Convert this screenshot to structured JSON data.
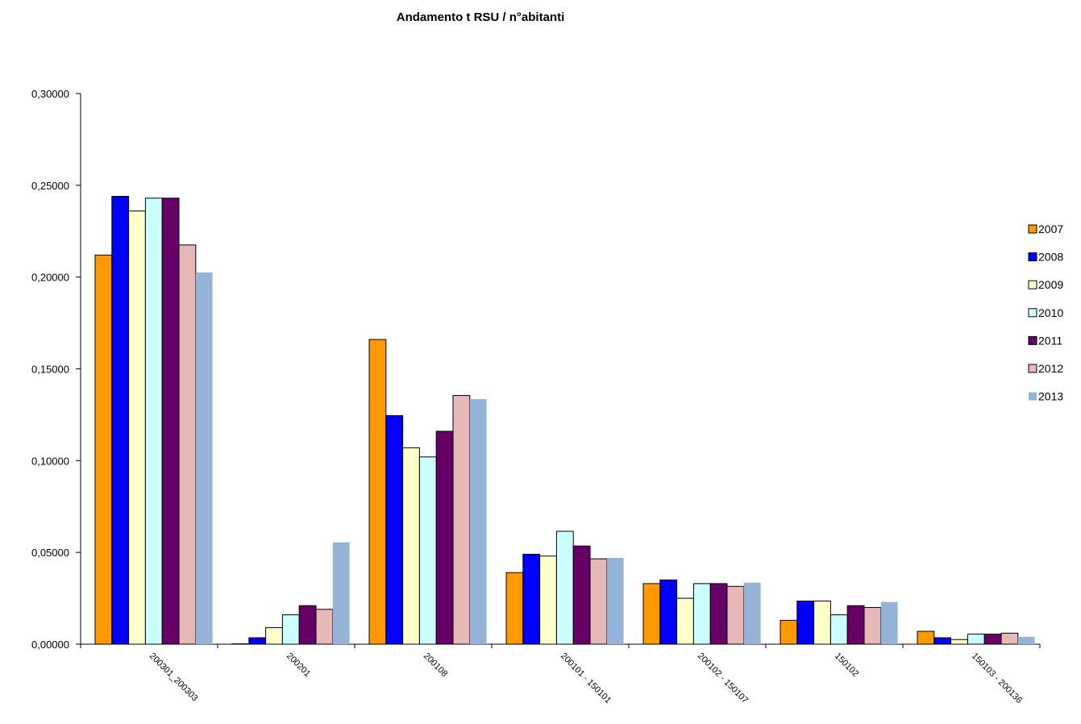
{
  "chart_data": {
    "type": "bar",
    "title": "Andamento t RSU / n°abitanti",
    "xlabel": "",
    "ylabel": "",
    "ylim": [
      0,
      0.3
    ],
    "yticks": [
      "0,00000",
      "0,05000",
      "0,10000",
      "0,15000",
      "0,20000",
      "0,25000",
      "0,30000"
    ],
    "ytick_values": [
      0,
      0.05,
      0.1,
      0.15,
      0.2,
      0.25,
      0.3
    ],
    "grid": false,
    "legend_position": "right",
    "categories": [
      "200301_200303",
      "200201",
      "200108",
      "200101 - 150101",
      "200102 - 150107",
      "150102",
      "150103 - 200136"
    ],
    "series": [
      {
        "name": "2007",
        "color": "#FF9900",
        "values": [
          0.212,
          0.0002,
          0.166,
          0.039,
          0.033,
          0.013,
          0.007
        ]
      },
      {
        "name": "2008",
        "color": "#0000FF",
        "values": [
          0.244,
          0.0035,
          0.1245,
          0.049,
          0.035,
          0.0235,
          0.0035
        ]
      },
      {
        "name": "2009",
        "color": "#FFFFCC",
        "values": [
          0.236,
          0.009,
          0.107,
          0.048,
          0.025,
          0.0235,
          0.0025
        ]
      },
      {
        "name": "2010",
        "color": "#CCFFFF",
        "values": [
          0.243,
          0.016,
          0.102,
          0.0615,
          0.033,
          0.016,
          0.0055
        ]
      },
      {
        "name": "2011",
        "color": "#660066",
        "values": [
          0.243,
          0.021,
          0.116,
          0.0535,
          0.033,
          0.021,
          0.0055
        ]
      },
      {
        "name": "2012",
        "color": "#E6B8B7",
        "values": [
          0.2175,
          0.019,
          0.1355,
          0.0465,
          0.0315,
          0.02,
          0.006
        ]
      },
      {
        "name": "2013",
        "color": "#95B3D7",
        "values": [
          0.2025,
          0.0555,
          0.1335,
          0.047,
          0.0335,
          0.023,
          0.004
        ]
      }
    ]
  }
}
